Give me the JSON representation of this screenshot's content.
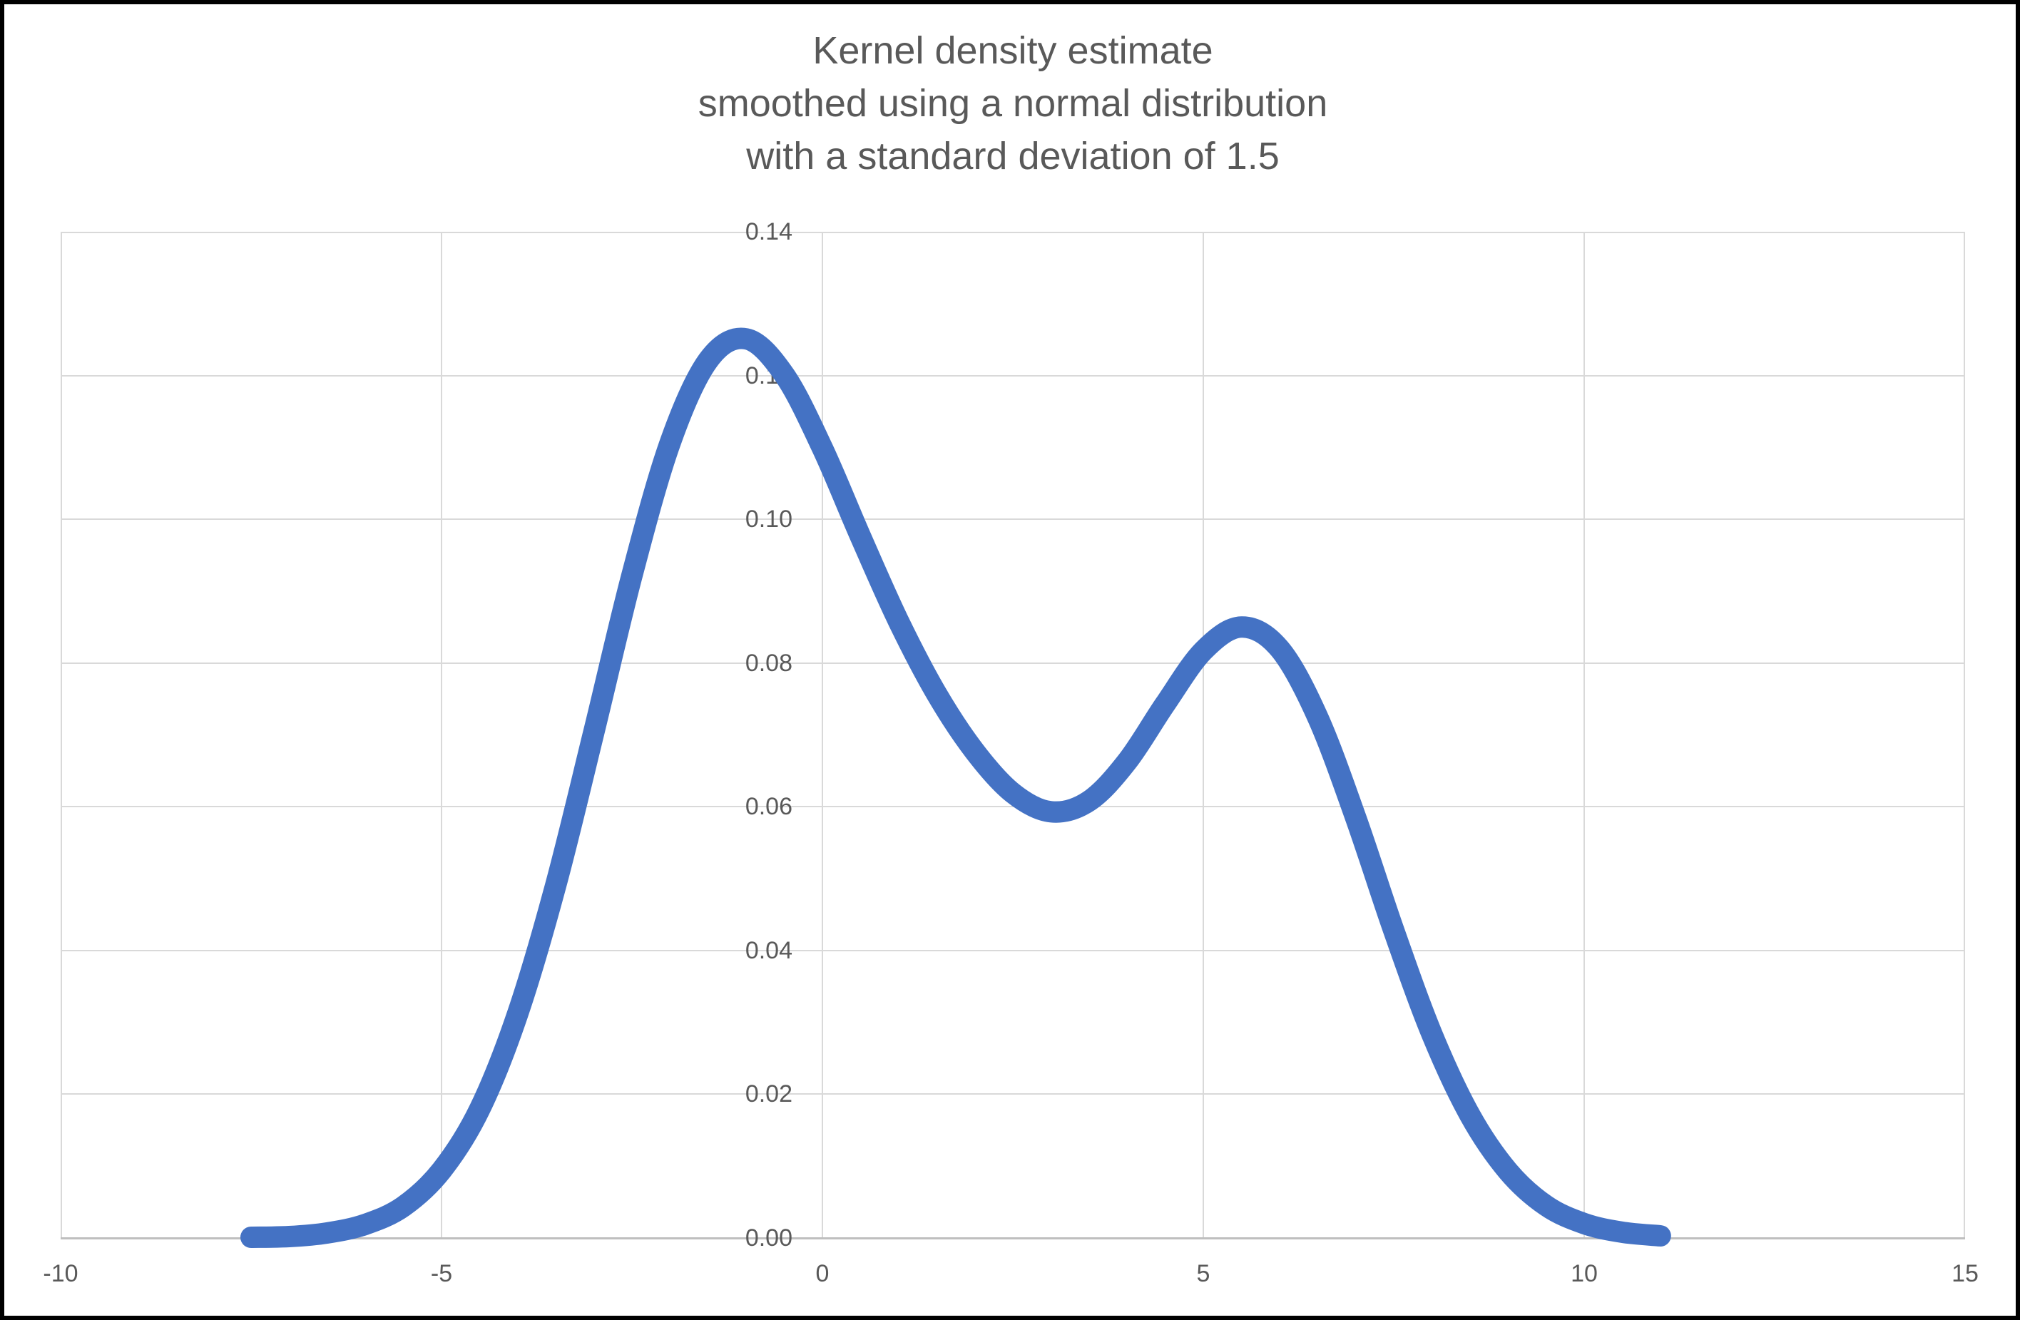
{
  "window": {
    "border_color": "#000000",
    "background": "#ffffff"
  },
  "chart_data": {
    "type": "line",
    "title": "Kernel density estimate smoothed using a normal distribution with a standard deviation of 1.5",
    "title_lines": [
      "Kernel density estimate",
      "smoothed using a normal distribution",
      "with a standard deviation of 1.5"
    ],
    "text_color": "#595959",
    "legend": "none",
    "grid": {
      "show": true,
      "color": "#d9d9d9",
      "axis_color": "#bfbfbf"
    },
    "x_axis": {
      "min": -10,
      "max": 15,
      "tick_step": 5,
      "ticks": [
        -10,
        -5,
        0,
        5,
        10,
        15
      ],
      "labels": [
        "-10",
        "-5",
        "0",
        "5",
        "10",
        "15"
      ]
    },
    "y_axis": {
      "min": 0,
      "max": 0.14,
      "tick_step": 0.02,
      "ticks": [
        0,
        0.02,
        0.04,
        0.06,
        0.08,
        0.1,
        0.12,
        0.14
      ],
      "labels": [
        "0.00",
        "0.02",
        "0.04",
        "0.06",
        "0.08",
        "0.10",
        "0.12",
        "0.14"
      ]
    },
    "series": [
      {
        "color": "#4472c4",
        "stroke_width": 30,
        "x": [
          -7.5,
          -7,
          -6.5,
          -6,
          -5.5,
          -5,
          -4.5,
          -4,
          -3.5,
          -3,
          -2.5,
          -2,
          -1.5,
          -1,
          -0.5,
          0,
          0.5,
          1,
          1.5,
          2,
          2.5,
          3,
          3.5,
          4,
          4.5,
          5,
          5.5,
          6,
          6.5,
          7,
          7.5,
          8,
          8.5,
          9,
          9.5,
          10,
          10.5,
          11
        ],
        "y": [
          0.0001,
          0.0002,
          0.0007,
          0.0019,
          0.0044,
          0.0094,
          0.0179,
          0.0312,
          0.0491,
          0.0704,
          0.0922,
          0.1106,
          0.1221,
          0.1251,
          0.1201,
          0.1099,
          0.0976,
          0.0858,
          0.0757,
          0.0677,
          0.0619,
          0.0593,
          0.0608,
          0.0663,
          0.0743,
          0.0817,
          0.085,
          0.082,
          0.0725,
          0.0585,
          0.0428,
          0.0284,
          0.0171,
          0.0093,
          0.0045,
          0.002,
          0.0008,
          0.0003
        ]
      }
    ]
  }
}
